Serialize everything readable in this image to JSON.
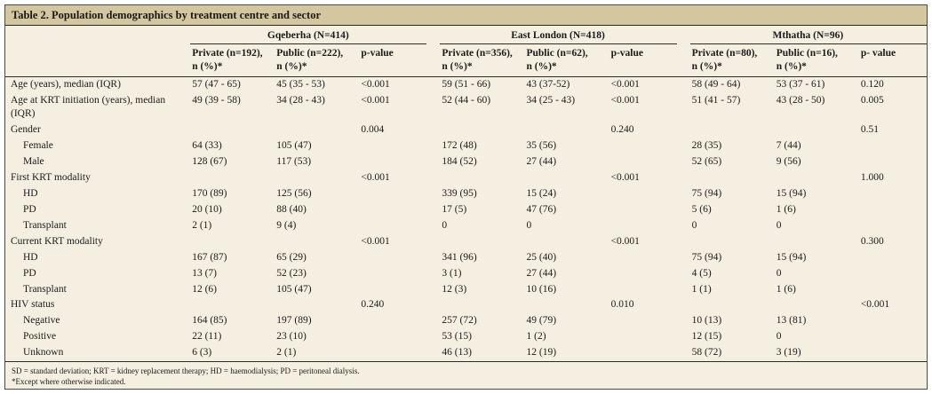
{
  "title": "Table 2. Population demographics by treatment centre and sector",
  "groups": [
    {
      "name": "Gqeberha (N=414)",
      "columns": [
        "Private (n=192),\nn (%)*",
        "Public (n=222),\nn (%)*",
        "p-value"
      ]
    },
    {
      "name": "East London (N=418)",
      "columns": [
        "Private (n=356),\nn (%)*",
        "Public (n=62),\nn (%)*",
        "p-value"
      ]
    },
    {
      "name": "Mthatha (N=96)",
      "columns": [
        "Private (n=80),\nn (%)*",
        "Public (n=16),\nn (%)*",
        "p- value"
      ]
    }
  ],
  "rows": [
    {
      "label": "Age (years), median (IQR)",
      "indent": 0,
      "cells": [
        "57 (47 - 65)",
        "45 (35 - 53)",
        "<0.001",
        "59 (51 - 66)",
        "43 (37-52)",
        "<0.001",
        "58 (49 - 64)",
        "53 (37 - 61)",
        "0.120"
      ]
    },
    {
      "label": "Age at KRT initiation (years), median (IQR)",
      "indent": 0,
      "cells": [
        "49 (39 - 58)",
        "34 (28 - 43)",
        "<0.001",
        "52 (44 - 60)",
        "34 (25 - 43)",
        "<0.001",
        "51 (41 - 57)",
        "43 (28 - 50)",
        "0.005"
      ]
    },
    {
      "label": "Gender",
      "indent": 0,
      "cells": [
        "",
        "",
        "0.004",
        "",
        "",
        "0.240",
        "",
        "",
        "0.51"
      ]
    },
    {
      "label": "Female",
      "indent": 1,
      "cells": [
        "64 (33)",
        "105 (47)",
        "",
        "172 (48)",
        "35 (56)",
        "",
        "28 (35)",
        "7 (44)",
        ""
      ]
    },
    {
      "label": "Male",
      "indent": 1,
      "cells": [
        "128 (67)",
        "117 (53)",
        "",
        "184 (52)",
        "27 (44)",
        "",
        "52 (65)",
        "9 (56)",
        ""
      ]
    },
    {
      "label": "First KRT modality",
      "indent": 0,
      "cells": [
        "",
        "",
        "<0.001",
        "",
        "",
        "<0.001",
        "",
        "",
        "1.000"
      ]
    },
    {
      "label": "HD",
      "indent": 1,
      "cells": [
        "170 (89)",
        "125 (56)",
        "",
        "339 (95)",
        "15 (24)",
        "",
        "75 (94)",
        "15 (94)",
        ""
      ]
    },
    {
      "label": "PD",
      "indent": 1,
      "cells": [
        "20 (10)",
        "88 (40)",
        "",
        "17 (5)",
        "47 (76)",
        "",
        "5 (6)",
        "1 (6)",
        ""
      ]
    },
    {
      "label": "Transplant",
      "indent": 1,
      "cells": [
        "2 (1)",
        "9 (4)",
        "",
        "0",
        "0",
        "",
        "0",
        "0",
        ""
      ]
    },
    {
      "label": "Current KRT modality",
      "indent": 0,
      "cells": [
        "",
        "",
        "<0.001",
        "",
        "",
        "<0.001",
        "",
        "",
        "0.300"
      ]
    },
    {
      "label": "HD",
      "indent": 1,
      "cells": [
        "167 (87)",
        "65 (29)",
        "",
        "341 (96)",
        "25 (40)",
        "",
        "75 (94)",
        "15 (94)",
        ""
      ]
    },
    {
      "label": "PD",
      "indent": 1,
      "cells": [
        "13 (7)",
        "52 (23)",
        "",
        "3 (1)",
        "27 (44)",
        "",
        "4 (5)",
        "0",
        ""
      ]
    },
    {
      "label": "Transplant",
      "indent": 1,
      "cells": [
        "12 (6)",
        "105 (47)",
        "",
        "12 (3)",
        "10 (16)",
        "",
        "1 (1)",
        "1 (6)",
        ""
      ]
    },
    {
      "label": "HIV status",
      "indent": 0,
      "cells": [
        "",
        "",
        "0.240",
        "",
        "",
        "0.010",
        "",
        "",
        "<0.001"
      ]
    },
    {
      "label": "Negative",
      "indent": 1,
      "cells": [
        "164 (85)",
        "197 (89)",
        "",
        "257 (72)",
        "49 (79)",
        "",
        "10 (13)",
        "13 (81)",
        ""
      ]
    },
    {
      "label": "Positive",
      "indent": 1,
      "cells": [
        "22 (11)",
        "23 (10)",
        "",
        "53 (15)",
        "1 (2)",
        "",
        "12 (15)",
        "0",
        ""
      ]
    },
    {
      "label": "Unknown",
      "indent": 1,
      "cells": [
        "6 (3)",
        "2 (1)",
        "",
        "46 (13)",
        "12 (19)",
        "",
        "58 (72)",
        "3 (19)",
        ""
      ]
    }
  ],
  "footnotes": [
    "SD = standard deviation; KRT = kidney replacement therapy; HD = haemodialysis; PD = peritoneal dialysis.",
    "*Except where otherwise indicated."
  ]
}
